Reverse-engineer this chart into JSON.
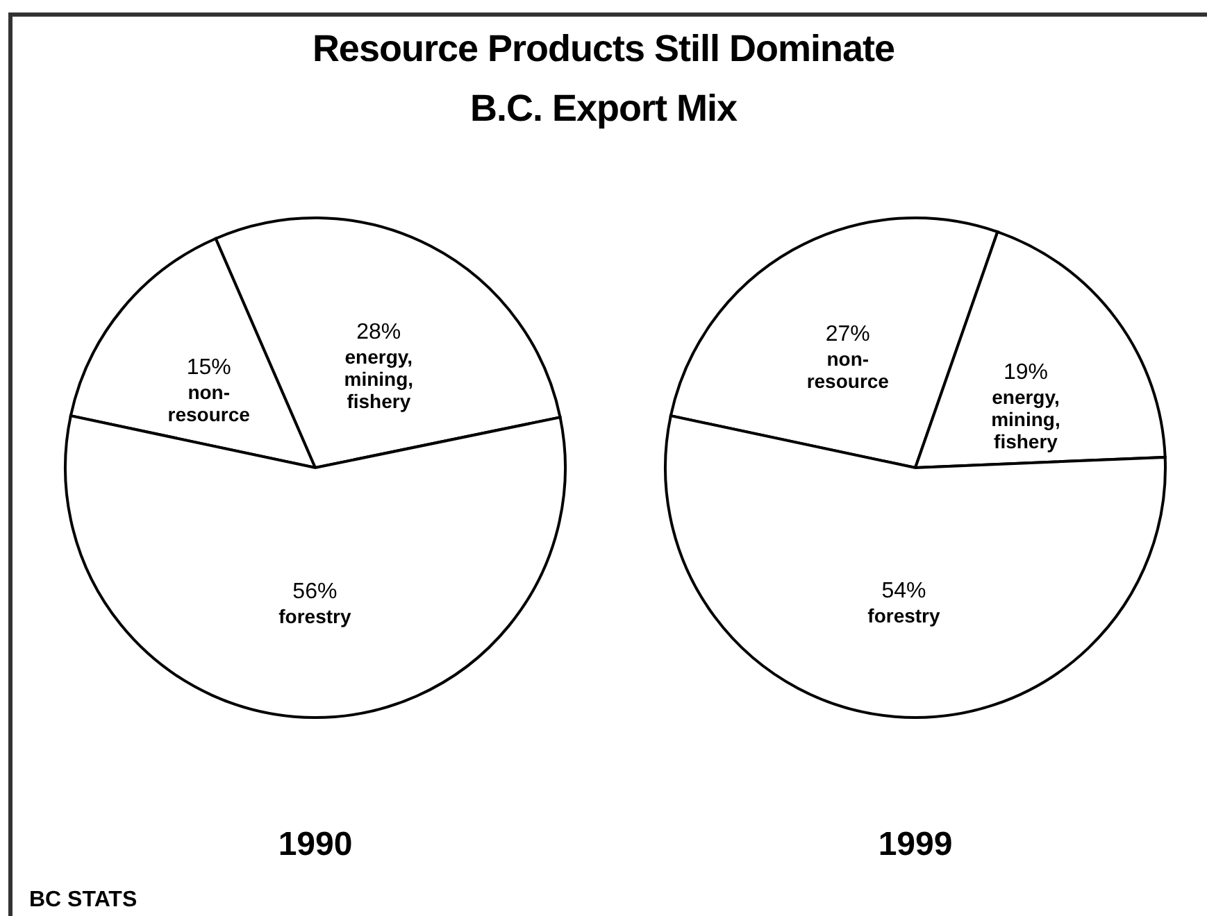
{
  "chart_data": [
    {
      "type": "pie",
      "title": "Resource Products Still Dominate\nB.C. Export Mix",
      "xlabel": "1990",
      "categories": [
        "non-resource",
        "energy, mining, fishery",
        "forestry"
      ],
      "values": [
        15,
        28,
        56
      ],
      "value_labels": [
        "15%",
        "28%",
        "56%"
      ],
      "colors": [
        "#ffffff",
        "#ffffff",
        "#ffffff"
      ],
      "annotations": [
        "BC STATS"
      ]
    },
    {
      "type": "pie",
      "xlabel": "1999",
      "categories": [
        "non-resource",
        "energy, mining, fishery",
        "forestry"
      ],
      "values": [
        27,
        19,
        54
      ],
      "value_labels": [
        "27%",
        "19%",
        "54%"
      ],
      "colors": [
        "#ffffff",
        "#ffffff",
        "#ffffff"
      ]
    }
  ]
}
